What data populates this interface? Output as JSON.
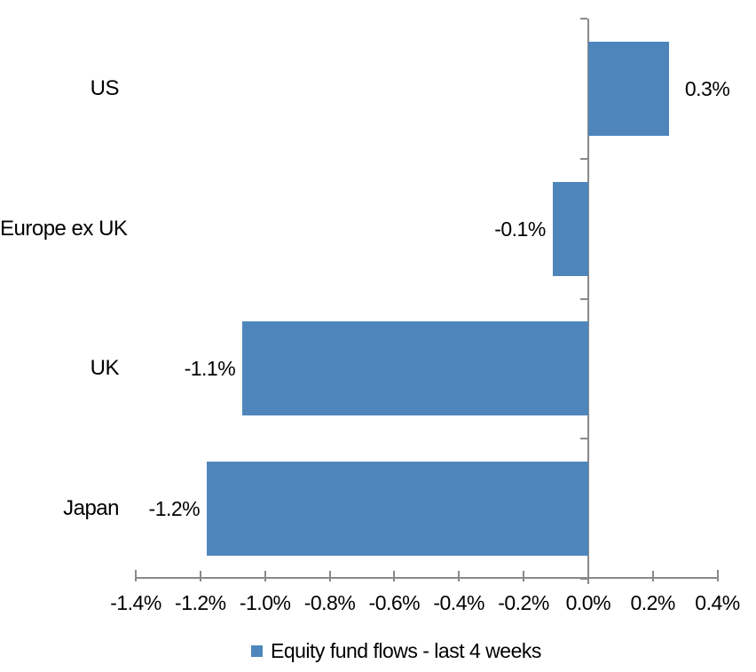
{
  "chart_data": {
    "type": "bar",
    "orientation": "horizontal",
    "title": "",
    "categories": [
      "US",
      "Europe ex UK",
      "UK",
      "Japan"
    ],
    "values": [
      0.25,
      -0.11,
      -1.07,
      -1.18
    ],
    "data_labels": [
      "0.3%",
      "-0.1%",
      "-1.1%",
      "-1.2%"
    ],
    "series": [
      {
        "name": "Equity fund flows - last 4 weeks",
        "values": [
          0.25,
          -0.11,
          -1.07,
          -1.18
        ]
      }
    ],
    "xlim": [
      -1.4,
      0.4
    ],
    "x_ticks": {
      "values": [
        -1.4,
        -1.2,
        -1.0,
        -0.8,
        -0.6,
        -0.4,
        -0.2,
        0.0,
        0.2,
        0.4
      ],
      "labels": [
        "-1.4%",
        "-1.2%",
        "-1.0%",
        "-0.8%",
        "-0.6%",
        "-0.4%",
        "-0.2%",
        "0.0%",
        "0.2%",
        "0.4%"
      ]
    },
    "grid": false,
    "legend": {
      "label": "Equity fund flows - last 4 weeks",
      "position": "bottom",
      "marker_color": "#4E86BC"
    },
    "colors": {
      "bar": "#4E86BC",
      "axis": "#898989",
      "text": "#000000",
      "background": "#FFFFFF"
    }
  }
}
